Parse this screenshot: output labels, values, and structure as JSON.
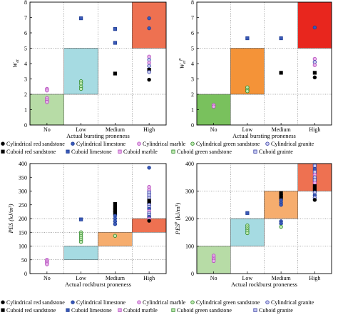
{
  "zone_colors": {
    "none": "#b7dca6",
    "low": "#a6dbe2",
    "medium": "#f6ad6e",
    "high": "#ee7151",
    "high_strong": "#e8261e",
    "medium_strong": "#f49338",
    "none_strong": "#79c15d"
  },
  "chart_data": [
    {
      "type": "scatter",
      "panel": "top-left",
      "xlabel": "Actual bursting proneness",
      "ylabel": "W_et",
      "categories": [
        "No",
        "Low",
        "Medium",
        "High"
      ],
      "ylim": [
        0,
        8
      ],
      "yticks": [
        0,
        1,
        2,
        3,
        4,
        5,
        6,
        7,
        8
      ],
      "zones": [
        {
          "category": "No",
          "y0": 0,
          "y1": 2,
          "color": "#b7dca6"
        },
        {
          "category": "Low",
          "y0": 2,
          "y1": 5,
          "color": "#a6dbe2"
        },
        {
          "category": "High",
          "y0": 5,
          "y1": 8,
          "color": "#ee7151"
        }
      ],
      "points": [
        {
          "c": 0,
          "y": 2.35,
          "s": "cyl_marble"
        },
        {
          "c": 0,
          "y": 2.25,
          "s": "cyl_marble"
        },
        {
          "c": 0,
          "y": 1.75,
          "s": "cyl_marble"
        },
        {
          "c": 0,
          "y": 1.6,
          "s": "cyl_marble"
        },
        {
          "c": 0,
          "y": 1.5,
          "s": "cyl_marble"
        },
        {
          "c": 1,
          "y": 6.95,
          "s": "cub_limestone"
        },
        {
          "c": 1,
          "y": 2.85,
          "s": "cyl_green"
        },
        {
          "c": 1,
          "y": 2.7,
          "s": "cyl_green"
        },
        {
          "c": 1,
          "y": 2.5,
          "s": "cyl_green"
        },
        {
          "c": 1,
          "y": 2.35,
          "s": "cyl_green"
        },
        {
          "c": 2,
          "y": 6.25,
          "s": "cub_limestone"
        },
        {
          "c": 2,
          "y": 5.35,
          "s": "cub_limestone"
        },
        {
          "c": 2,
          "y": 3.35,
          "s": "cub_red"
        },
        {
          "c": 3,
          "y": 6.95,
          "s": "cyl_limestone"
        },
        {
          "c": 3,
          "y": 6.3,
          "s": "cyl_limestone"
        },
        {
          "c": 3,
          "y": 4.45,
          "s": "cyl_marble"
        },
        {
          "c": 3,
          "y": 4.25,
          "s": "cyl_granite"
        },
        {
          "c": 3,
          "y": 4.05,
          "s": "cyl_marble"
        },
        {
          "c": 3,
          "y": 3.85,
          "s": "cyl_granite"
        },
        {
          "c": 3,
          "y": 3.6,
          "s": "cub_red"
        },
        {
          "c": 3,
          "y": 3.45,
          "s": "cyl_granite"
        },
        {
          "c": 3,
          "y": 2.95,
          "s": "cyl_red"
        }
      ]
    },
    {
      "type": "scatter",
      "panel": "top-right",
      "xlabel": "Actual bursting proneness",
      "ylabel": "W_et^p",
      "categories": [
        "No",
        "Low",
        "Medium",
        "High"
      ],
      "ylim": [
        0,
        8
      ],
      "yticks": [
        0,
        1,
        2,
        3,
        4,
        5,
        6,
        7,
        8
      ],
      "zones": [
        {
          "category": "No",
          "y0": 0,
          "y1": 2,
          "color": "#79c15d"
        },
        {
          "category": "Low",
          "y0": 2,
          "y1": 5,
          "color": "#f49338"
        },
        {
          "category": "High",
          "y0": 5,
          "y1": 8,
          "color": "#e8261e"
        }
      ],
      "points": [
        {
          "c": 0,
          "y": 1.3,
          "s": "cyl_marble"
        },
        {
          "c": 0,
          "y": 1.2,
          "s": "cyl_marble"
        },
        {
          "c": 1,
          "y": 5.65,
          "s": "cub_limestone"
        },
        {
          "c": 1,
          "y": 2.45,
          "s": "cyl_green"
        },
        {
          "c": 1,
          "y": 2.3,
          "s": "cyl_green"
        },
        {
          "c": 1,
          "y": 2.2,
          "s": "cyl_green"
        },
        {
          "c": 2,
          "y": 5.65,
          "s": "cub_limestone"
        },
        {
          "c": 2,
          "y": 3.4,
          "s": "cub_red"
        },
        {
          "c": 3,
          "y": 6.35,
          "s": "cyl_limestone"
        },
        {
          "c": 3,
          "y": 4.3,
          "s": "cyl_marble"
        },
        {
          "c": 3,
          "y": 4.1,
          "s": "cyl_granite"
        },
        {
          "c": 3,
          "y": 3.9,
          "s": "cyl_marble"
        },
        {
          "c": 3,
          "y": 3.4,
          "s": "cub_red"
        },
        {
          "c": 3,
          "y": 3.1,
          "s": "cyl_red"
        }
      ]
    },
    {
      "type": "scatter",
      "panel": "bottom-left",
      "xlabel": "Actual rockburst proneness",
      "ylabel": "PES (kJ/m³)",
      "categories": [
        "No",
        "Low",
        "Medium",
        "High"
      ],
      "ylim": [
        0,
        400
      ],
      "yticks": [
        0,
        50,
        100,
        150,
        200,
        250,
        300,
        350,
        400
      ],
      "zones": [
        {
          "category": "Low",
          "y0": 50,
          "y1": 100,
          "color": "#a6dbe2"
        },
        {
          "category": "Medium",
          "y0": 100,
          "y1": 150,
          "color": "#f6ad6e"
        },
        {
          "category": "High",
          "y0": 150,
          "y1": 200,
          "color": "#ee7151"
        }
      ],
      "points": [
        {
          "c": 0,
          "y": 50,
          "s": "cyl_marble"
        },
        {
          "c": 0,
          "y": 44,
          "s": "cyl_marble"
        },
        {
          "c": 0,
          "y": 39,
          "s": "cyl_marble"
        },
        {
          "c": 0,
          "y": 34,
          "s": "cyl_marble"
        },
        {
          "c": 1,
          "y": 197,
          "s": "cub_limestone"
        },
        {
          "c": 1,
          "y": 150,
          "s": "cyl_green"
        },
        {
          "c": 1,
          "y": 143,
          "s": "cyl_green"
        },
        {
          "c": 1,
          "y": 136,
          "s": "cyl_green"
        },
        {
          "c": 1,
          "y": 129,
          "s": "cyl_green"
        },
        {
          "c": 1,
          "y": 122,
          "s": "cyl_green"
        },
        {
          "c": 1,
          "y": 115,
          "s": "cyl_green"
        },
        {
          "c": 2,
          "y": 253,
          "s": "cub_red"
        },
        {
          "c": 2,
          "y": 240,
          "s": "cub_red"
        },
        {
          "c": 2,
          "y": 230,
          "s": "cub_red"
        },
        {
          "c": 2,
          "y": 220,
          "s": "cub_red"
        },
        {
          "c": 2,
          "y": 210,
          "s": "cyl_limestone"
        },
        {
          "c": 2,
          "y": 200,
          "s": "cyl_limestone"
        },
        {
          "c": 2,
          "y": 190,
          "s": "cyl_limestone"
        },
        {
          "c": 2,
          "y": 180,
          "s": "cyl_limestone"
        },
        {
          "c": 2,
          "y": 137,
          "s": "cyl_green"
        },
        {
          "c": 3,
          "y": 385,
          "s": "cyl_limestone"
        },
        {
          "c": 3,
          "y": 315,
          "s": "cyl_marble"
        },
        {
          "c": 3,
          "y": 305,
          "s": "cyl_marble"
        },
        {
          "c": 3,
          "y": 295,
          "s": "cub_granite"
        },
        {
          "c": 3,
          "y": 285,
          "s": "cub_granite"
        },
        {
          "c": 3,
          "y": 275,
          "s": "cyl_granite"
        },
        {
          "c": 3,
          "y": 265,
          "s": "cub_red"
        },
        {
          "c": 3,
          "y": 258,
          "s": "cub_red"
        },
        {
          "c": 3,
          "y": 250,
          "s": "cyl_granite"
        },
        {
          "c": 3,
          "y": 242,
          "s": "cub_granite"
        },
        {
          "c": 3,
          "y": 235,
          "s": "cyl_limestone"
        },
        {
          "c": 3,
          "y": 227,
          "s": "cyl_marble"
        },
        {
          "c": 3,
          "y": 220,
          "s": "cyl_granite"
        },
        {
          "c": 3,
          "y": 213,
          "s": "cub_granite"
        },
        {
          "c": 3,
          "y": 206,
          "s": "cyl_limestone"
        },
        {
          "c": 3,
          "y": 199,
          "s": "cyl_marble"
        },
        {
          "c": 3,
          "y": 192,
          "s": "cyl_red"
        }
      ]
    },
    {
      "type": "scatter",
      "panel": "bottom-right",
      "xlabel": "Actual rockburst proneness",
      "ylabel": "PES^p (kJ/m³)",
      "categories": [
        "No",
        "Low",
        "Medium",
        "High"
      ],
      "ylim": [
        0,
        400
      ],
      "yticks": [
        0,
        100,
        200,
        300,
        400
      ],
      "zones": [
        {
          "category": "No",
          "y0": 0,
          "y1": 100,
          "color": "#b7dca6"
        },
        {
          "category": "Low",
          "y0": 100,
          "y1": 200,
          "color": "#a6dbe2"
        },
        {
          "category": "Medium",
          "y0": 200,
          "y1": 300,
          "color": "#f6ad6e"
        },
        {
          "category": "High",
          "y0": 300,
          "y1": 400,
          "color": "#ee7151"
        }
      ],
      "points": [
        {
          "c": 0,
          "y": 65,
          "s": "cyl_marble"
        },
        {
          "c": 0,
          "y": 58,
          "s": "cyl_marble"
        },
        {
          "c": 0,
          "y": 52,
          "s": "cyl_marble"
        },
        {
          "c": 0,
          "y": 46,
          "s": "cyl_marble"
        },
        {
          "c": 1,
          "y": 220,
          "s": "cub_limestone"
        },
        {
          "c": 1,
          "y": 175,
          "s": "cyl_green"
        },
        {
          "c": 1,
          "y": 168,
          "s": "cyl_green"
        },
        {
          "c": 1,
          "y": 161,
          "s": "cyl_green"
        },
        {
          "c": 1,
          "y": 154,
          "s": "cyl_green"
        },
        {
          "c": 1,
          "y": 147,
          "s": "cyl_green"
        },
        {
          "c": 2,
          "y": 292,
          "s": "cub_red"
        },
        {
          "c": 2,
          "y": 283,
          "s": "cub_red"
        },
        {
          "c": 2,
          "y": 275,
          "s": "cub_red"
        },
        {
          "c": 2,
          "y": 267,
          "s": "cyl_limestone"
        },
        {
          "c": 2,
          "y": 258,
          "s": "cyl_limestone"
        },
        {
          "c": 2,
          "y": 250,
          "s": "cyl_limestone"
        },
        {
          "c": 2,
          "y": 190,
          "s": "cyl_limestone"
        },
        {
          "c": 2,
          "y": 182,
          "s": "cyl_limestone"
        },
        {
          "c": 2,
          "y": 170,
          "s": "cyl_green"
        },
        {
          "c": 3,
          "y": 392,
          "s": "cub_granite"
        },
        {
          "c": 3,
          "y": 380,
          "s": "cyl_limestone"
        },
        {
          "c": 3,
          "y": 370,
          "s": "cub_granite"
        },
        {
          "c": 3,
          "y": 360,
          "s": "cyl_marble"
        },
        {
          "c": 3,
          "y": 350,
          "s": "cyl_granite"
        },
        {
          "c": 3,
          "y": 340,
          "s": "cub_granite"
        },
        {
          "c": 3,
          "y": 330,
          "s": "cyl_marble"
        },
        {
          "c": 3,
          "y": 318,
          "s": "cub_red"
        },
        {
          "c": 3,
          "y": 305,
          "s": "cub_red"
        },
        {
          "c": 3,
          "y": 295,
          "s": "cyl_granite"
        },
        {
          "c": 3,
          "y": 285,
          "s": "cyl_limestone"
        },
        {
          "c": 3,
          "y": 276,
          "s": "cyl_granite"
        },
        {
          "c": 3,
          "y": 268,
          "s": "cyl_red"
        }
      ]
    }
  ],
  "legend_top": [
    {
      "label": "Cylindrical red sandstone",
      "s": "cyl_red"
    },
    {
      "label": "Cylindrical limestone",
      "s": "cyl_limestone"
    },
    {
      "label": "Cylindrical marble",
      "s": "cyl_marble"
    },
    {
      "label": "Cylindrical green sandstone",
      "s": "cyl_green"
    },
    {
      "label": "Cylindrical granite",
      "s": "cyl_granite"
    },
    {
      "label": "Cuboid red sandstone",
      "s": "cub_red"
    },
    {
      "label": "Cuboid limestone",
      "s": "cub_limestone"
    },
    {
      "label": "Cuboid granite",
      "s": "cub_granite"
    }
  ],
  "legend_top_line2": [
    {
      "label": "Cuboid red sandstone",
      "s": "cub_red"
    },
    {
      "label": "Cuboid limestone",
      "s": "cub_limestone"
    },
    {
      "label": "Cuboid marble",
      "s": "cub_marble"
    },
    {
      "label": "Cuboid green sandstone",
      "s": "cub_green"
    },
    {
      "label": "Cuboid grainte",
      "s": "cub_granite"
    }
  ],
  "legend_bottom": [
    {
      "label": "Cylindrical red sandstone",
      "s": "cyl_red"
    },
    {
      "label": "Cylindrical limestone",
      "s": "cyl_limestone"
    },
    {
      "label": "Cylindrical marble",
      "s": "cyl_marble"
    },
    {
      "label": "Cylindrical green sandstone",
      "s": "cyl_green"
    },
    {
      "label": "Cylindrical granite",
      "s": "cyl_granite"
    }
  ],
  "legend_bottom_line2": [
    {
      "label": "Cuboid red sandstone",
      "s": "cub_red"
    },
    {
      "label": "Cuboid limestone",
      "s": "cub_limestone"
    },
    {
      "label": "Cuboid marble",
      "s": "cub_marble"
    },
    {
      "label": "Cuboid green sandstone",
      "s": "cub_green"
    },
    {
      "label": "Cuboid granite",
      "s": "cub_granite"
    }
  ]
}
